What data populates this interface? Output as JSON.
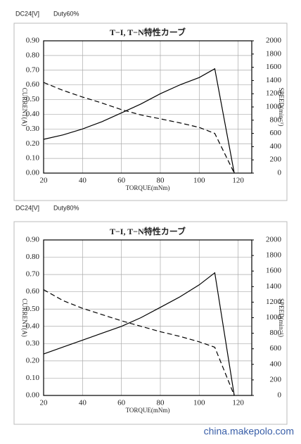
{
  "chart_data": [
    {
      "type": "line",
      "voltage": "DC24[V]",
      "duty": "Duty60%",
      "title": "T−I, T−N特性カーブ",
      "x_label": "TORQUE(mNm)",
      "y_label": "CURRENT(A)",
      "y2_label": "SPEED(min⁻¹)",
      "x": [
        20,
        30,
        40,
        50,
        60,
        70,
        80,
        90,
        100,
        108,
        118
      ],
      "series": [
        {
          "color": "#000000",
          "dash": "solid",
          "values": [
            0.23,
            0.26,
            0.3,
            0.35,
            0.41,
            0.47,
            0.54,
            0.6,
            0.65,
            0.71,
            0
          ]
        },
        {
          "color": "#000000",
          "dash": "dashed",
          "axis": "y2",
          "values": [
            1370,
            1250,
            1150,
            1060,
            960,
            880,
            820,
            760,
            690,
            600,
            0
          ]
        }
      ],
      "xlim": [
        20,
        127
      ],
      "xticks": [
        20,
        40,
        60,
        80,
        100,
        120
      ],
      "ylim": [
        0,
        0.9
      ],
      "yticks": [
        {
          "value": 0,
          "label": "0.00"
        },
        {
          "value": 0.1,
          "label": "0.10"
        },
        {
          "value": 0.2,
          "label": "0.20"
        },
        {
          "value": 0.3,
          "label": "0.30"
        },
        {
          "value": 0.4,
          "label": "0.40"
        },
        {
          "value": 0.5,
          "label": "0.50"
        },
        {
          "value": 0.6,
          "label": "0.60"
        },
        {
          "value": 0.7,
          "label": "0.70"
        },
        {
          "value": 0.8,
          "label": "0.80"
        },
        {
          "value": 0.9,
          "label": "0.90"
        }
      ],
      "y2lim": [
        0,
        2000
      ],
      "y2ticks": [
        0,
        200,
        400,
        600,
        800,
        1000,
        1200,
        1400,
        1600,
        1800,
        2000
      ],
      "grid": true
    },
    {
      "type": "line",
      "voltage": "DC24[V]",
      "duty": "Duty80%",
      "title": "T−I, T−N特性カーブ",
      "x_label": "TORQUE(mNm)",
      "y_label": "CURRENT(A)",
      "y2_label": "SPEED(min⁻¹)",
      "x": [
        20,
        30,
        40,
        50,
        60,
        70,
        80,
        90,
        100,
        108,
        118
      ],
      "series": [
        {
          "color": "#000000",
          "dash": "solid",
          "values": [
            0.24,
            0.28,
            0.32,
            0.36,
            0.4,
            0.45,
            0.51,
            0.57,
            0.64,
            0.71,
            0
          ]
        },
        {
          "color": "#000000",
          "dash": "dashed",
          "axis": "y2",
          "values": [
            1360,
            1220,
            1120,
            1040,
            960,
            890,
            820,
            760,
            690,
            620,
            0
          ]
        }
      ],
      "xlim": [
        20,
        127
      ],
      "xticks": [
        20,
        40,
        60,
        80,
        100,
        120
      ],
      "ylim": [
        0,
        0.9
      ],
      "yticks": [
        {
          "value": 0,
          "label": "0.00"
        },
        {
          "value": 0.1,
          "label": "0.10"
        },
        {
          "value": 0.2,
          "label": "0.20"
        },
        {
          "value": 0.3,
          "label": "0.30"
        },
        {
          "value": 0.4,
          "label": "0.40"
        },
        {
          "value": 0.5,
          "label": "0.50"
        },
        {
          "value": 0.6,
          "label": "0.60"
        },
        {
          "value": 0.7,
          "label": "0.70"
        },
        {
          "value": 0.8,
          "label": "0.80"
        },
        {
          "value": 0.9,
          "label": "0.90"
        }
      ],
      "y2lim": [
        0,
        2000
      ],
      "y2ticks": [
        0,
        200,
        400,
        600,
        800,
        1000,
        1200,
        1400,
        1600,
        1800,
        2000
      ],
      "grid": true
    }
  ],
  "watermark": "china.makepolo.com"
}
